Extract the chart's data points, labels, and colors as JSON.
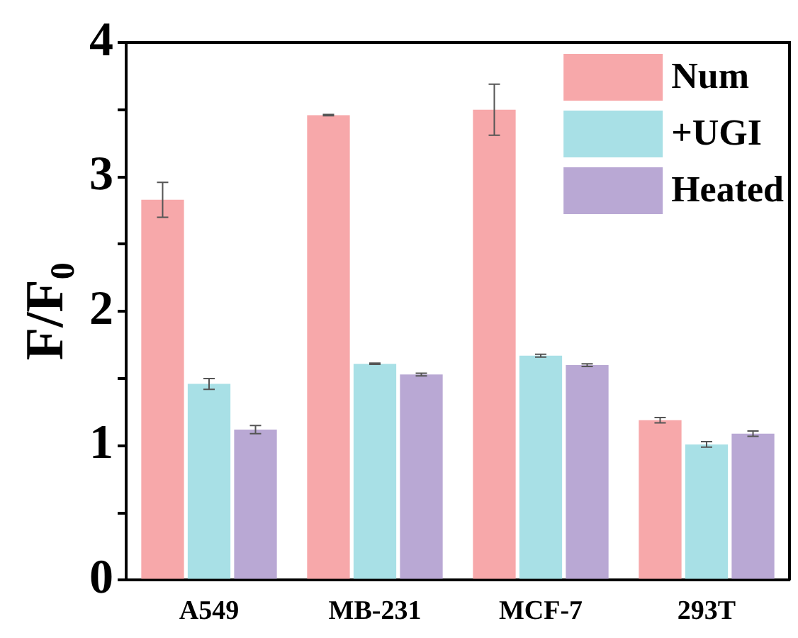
{
  "chart_data": {
    "type": "bar",
    "ylabel": "F/F$_{0}$",
    "categories": [
      "A549",
      "MB-231",
      "MCF-7",
      "293T"
    ],
    "series": [
      {
        "name": "Num",
        "color": "#f7a8aa",
        "values": [
          2.83,
          3.46,
          3.5,
          1.19
        ],
        "errors": [
          0.13,
          0.005,
          0.19,
          0.02
        ]
      },
      {
        "name": "+UGI",
        "color": "#a8e0e6",
        "values": [
          1.46,
          1.61,
          1.67,
          1.01
        ],
        "errors": [
          0.04,
          0.005,
          0.01,
          0.02
        ]
      },
      {
        "name": "Heated",
        "color": "#b9a8d4",
        "values": [
          1.12,
          1.53,
          1.6,
          1.09
        ],
        "errors": [
          0.03,
          0.01,
          0.01,
          0.02
        ]
      }
    ],
    "ylim": [
      0,
      4
    ],
    "yticks": [
      0,
      {
        "value": 0.5,
        "label": null
      },
      1,
      {
        "value": 1.5,
        "label": null
      },
      2,
      {
        "value": 2.5,
        "label": null
      },
      3,
      {
        "value": 3.5,
        "label": null
      },
      4
    ],
    "grid": false,
    "legend": "top right"
  }
}
